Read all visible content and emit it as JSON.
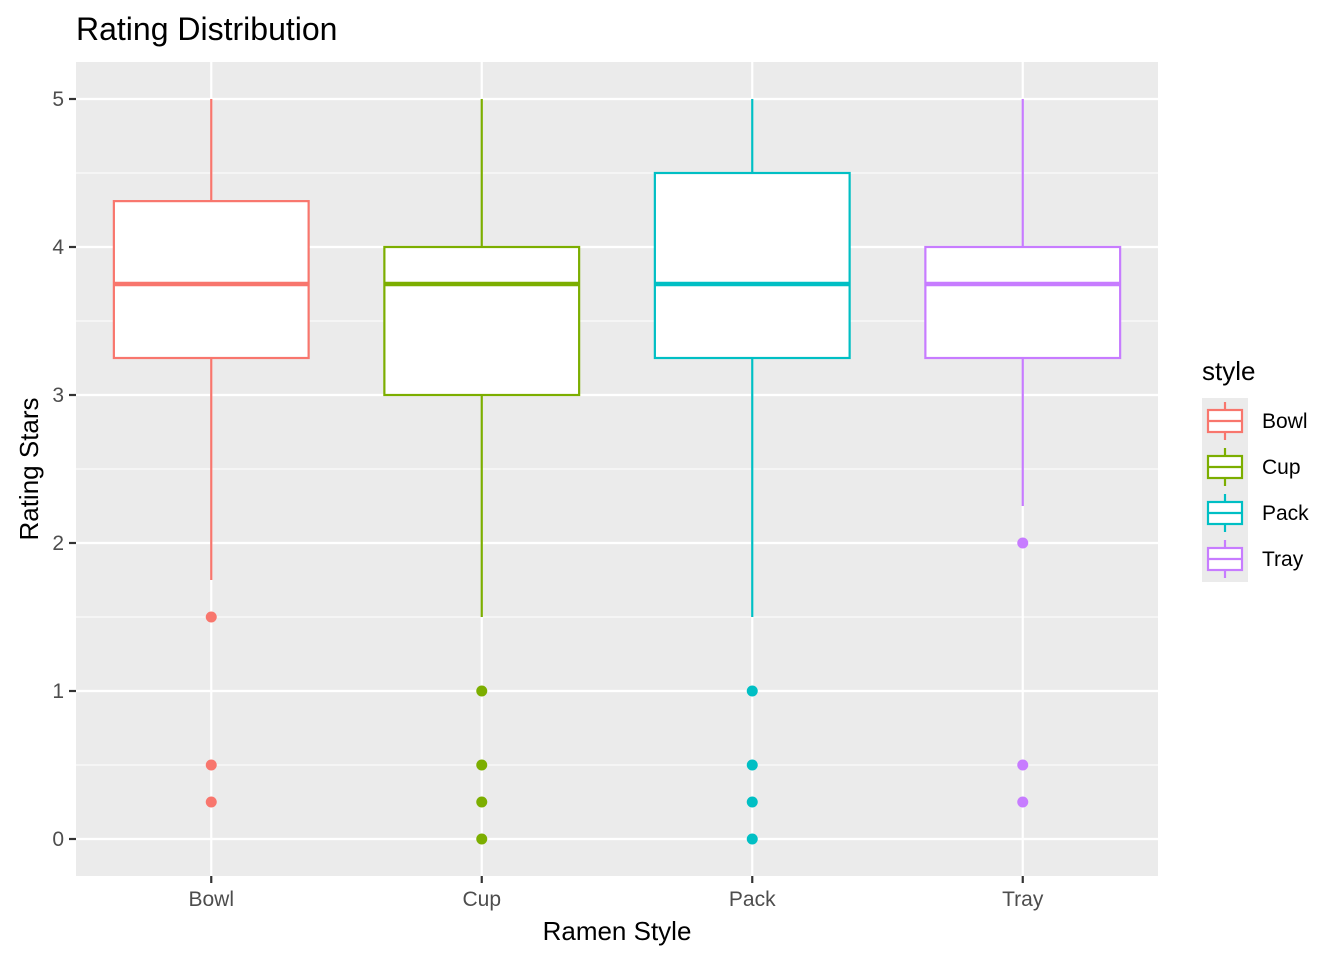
{
  "chart_data": {
    "type": "boxplot",
    "title": "Rating Distribution",
    "xlabel": "Ramen Style",
    "ylabel": "Rating Stars",
    "categories": [
      "Bowl",
      "Cup",
      "Pack",
      "Tray"
    ],
    "ylim": [
      -0.25,
      5.25
    ],
    "yticks": [
      "0",
      "1",
      "2",
      "3",
      "4",
      "5"
    ],
    "grid": true,
    "legend": {
      "title": "style",
      "position": "right",
      "entries": [
        "Bowl",
        "Cup",
        "Pack",
        "Tray"
      ]
    },
    "series": [
      {
        "name": "Bowl",
        "color": "#F8766D",
        "whisker_low": 1.75,
        "q1": 3.25,
        "median": 3.75,
        "q3": 4.31,
        "whisker_high": 5,
        "outliers": [
          1.5,
          0.5,
          0.25
        ]
      },
      {
        "name": "Cup",
        "color": "#7CAE00",
        "whisker_low": 1.5,
        "q1": 3.0,
        "median": 3.75,
        "q3": 4.0,
        "whisker_high": 5,
        "outliers": [
          1.0,
          0.5,
          0.25,
          0
        ]
      },
      {
        "name": "Pack",
        "color": "#00BFC4",
        "whisker_low": 1.5,
        "q1": 3.25,
        "median": 3.75,
        "q3": 4.5,
        "whisker_high": 5,
        "outliers": [
          1.0,
          0.5,
          0.25,
          0
        ]
      },
      {
        "name": "Tray",
        "color": "#C77CFF",
        "whisker_low": 2.25,
        "q1": 3.25,
        "median": 3.75,
        "q3": 4.0,
        "whisker_high": 5,
        "outliers": [
          2.0,
          0.5,
          0.25
        ]
      }
    ]
  }
}
